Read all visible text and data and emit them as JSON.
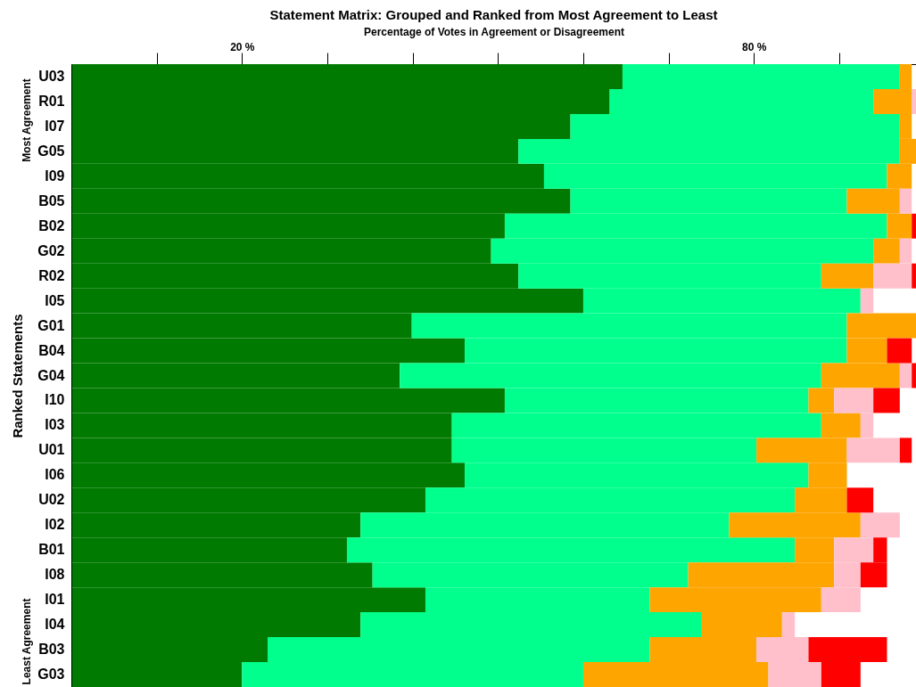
{
  "chart_data": {
    "type": "bar",
    "orientation": "horizontal",
    "stacked": true,
    "title": "Statement Matrix: Grouped and Ranked from Most Agreement to Least",
    "xlabel": "Percentage of Votes in Agreement or Disagreement",
    "ylabel": "Ranked Statements",
    "annotations": [
      "Most Agreement",
      "Least Agreement"
    ],
    "categories": [
      "U03",
      "R01",
      "I07",
      "G05",
      "I09",
      "B05",
      "B02",
      "G02",
      "R02",
      "I05",
      "G01",
      "B04",
      "G04",
      "I10",
      "I03",
      "U01",
      "I06",
      "U02",
      "I02",
      "B01",
      "I08",
      "I01",
      "I04",
      "B03",
      "G03"
    ],
    "xlim": [
      0,
      99
    ],
    "xticks": [
      {
        "value": 10,
        "label": null
      },
      {
        "value": 20,
        "label": "20 %"
      },
      {
        "value": 30,
        "label": null
      },
      {
        "value": 40,
        "label": null
      },
      {
        "value": 50,
        "label": null
      },
      {
        "value": 60,
        "label": null
      },
      {
        "value": 70,
        "label": null
      },
      {
        "value": 80,
        "label": "80 %"
      },
      {
        "value": 90,
        "label": null
      }
    ],
    "grid": false,
    "legend": false,
    "series": [
      {
        "color": "#007a00",
        "values": [
          64.6,
          63.1,
          58.5,
          52.4,
          55.4,
          58.5,
          50.8,
          49.2,
          52.4,
          60.0,
          39.9,
          46.1,
          38.5,
          50.8,
          44.6,
          44.6,
          46.1,
          41.5,
          33.9,
          32.3,
          35.3,
          41.5,
          33.9,
          23.0,
          20.0
        ]
      },
      {
        "color": "#00ff8c",
        "values": [
          32.5,
          30.9,
          38.6,
          44.7,
          40.2,
          32.4,
          44.8,
          44.8,
          35.5,
          32.5,
          51.0,
          44.8,
          49.4,
          35.6,
          43.3,
          35.7,
          40.3,
          43.3,
          43.2,
          52.5,
          37.0,
          26.3,
          40.0,
          44.8,
          40.0
        ]
      },
      {
        "color": "#ffa500",
        "values": [
          1.4,
          4.5,
          1.4,
          1.9,
          2.9,
          6.2,
          2.9,
          3.1,
          6.1,
          null,
          8.1,
          4.7,
          9.2,
          3.0,
          4.6,
          10.6,
          4.5,
          6.1,
          15.4,
          4.6,
          17.1,
          20.1,
          9.4,
          12.5,
          21.7
        ]
      },
      {
        "color": "#ffc0cb",
        "values": [
          null,
          0.5,
          null,
          null,
          null,
          1.4,
          null,
          1.4,
          4.5,
          1.5,
          null,
          null,
          1.4,
          4.6,
          1.5,
          6.2,
          null,
          null,
          4.6,
          4.6,
          3.1,
          4.6,
          1.5,
          6.1,
          6.2
        ]
      },
      {
        "color": "#ff0000",
        "values": [
          null,
          null,
          null,
          null,
          null,
          null,
          0.5,
          null,
          0.5,
          null,
          null,
          2.9,
          0.5,
          3.1,
          null,
          1.4,
          null,
          3.1,
          null,
          1.6,
          3.1,
          null,
          null,
          9.2,
          4.6
        ]
      }
    ]
  }
}
